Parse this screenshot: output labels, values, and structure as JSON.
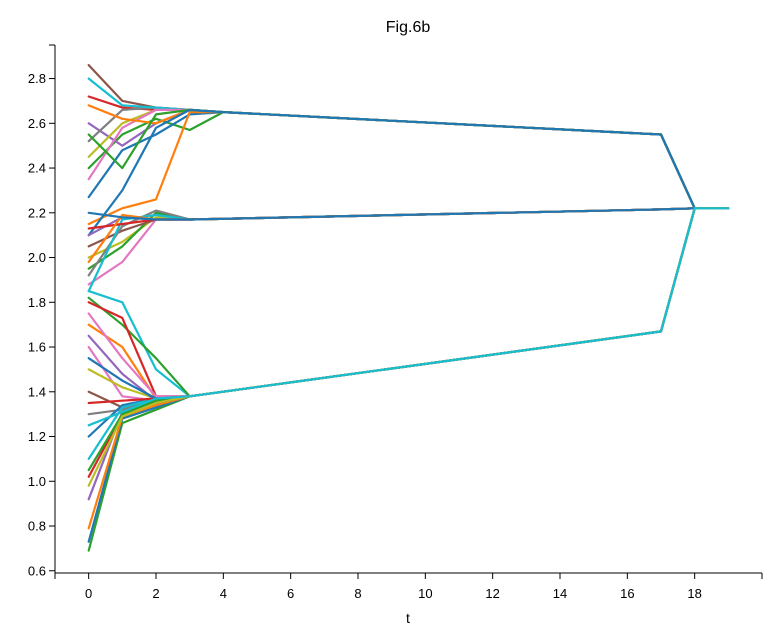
{
  "chart_data": {
    "type": "line",
    "title": "Fig.6b",
    "xlabel": "t",
    "ylabel": "",
    "xlim": [
      -1,
      20
    ],
    "ylim": [
      0.59,
      2.95
    ],
    "x_ticks": [
      0,
      2,
      4,
      6,
      8,
      10,
      12,
      14,
      16,
      18
    ],
    "y_ticks": [
      0.6,
      0.8,
      1.0,
      1.2,
      1.4,
      1.6,
      1.8,
      2.0,
      2.2,
      2.4,
      2.6,
      2.8
    ],
    "grid": false,
    "legend": "none",
    "palette": [
      "#1f77b4",
      "#ff7f0e",
      "#2ca02c",
      "#d62728",
      "#9467bd",
      "#8c564b",
      "#e377c2",
      "#7f7f7f",
      "#bcbd22",
      "#17becf"
    ],
    "series": [
      {
        "color": "#2ca02c",
        "x": [
          0,
          1,
          2,
          3,
          4,
          17,
          18,
          19
        ],
        "y": [
          2.4,
          2.55,
          2.62,
          2.57,
          2.65,
          2.55,
          2.22,
          2.22
        ]
      },
      {
        "color": "#1f77b4",
        "x": [
          0,
          1,
          2,
          3,
          4,
          17,
          18,
          19
        ],
        "y": [
          2.27,
          2.48,
          2.55,
          2.64,
          2.65,
          2.55,
          2.22,
          2.22
        ]
      },
      {
        "color": "#ff7f0e",
        "x": [
          0,
          1,
          2,
          3,
          4,
          17,
          18,
          19
        ],
        "y": [
          2.15,
          2.22,
          2.26,
          2.65,
          2.65,
          2.55,
          2.22,
          2.22
        ]
      },
      {
        "color": "#8c564b",
        "x": [
          0,
          1,
          2,
          3,
          4,
          17,
          18,
          19
        ],
        "y": [
          2.86,
          2.7,
          2.67,
          2.66,
          2.65,
          2.55,
          2.22,
          2.22
        ]
      },
      {
        "color": "#d62728",
        "x": [
          0,
          1,
          2,
          3,
          4,
          17,
          18,
          19
        ],
        "y": [
          2.72,
          2.67,
          2.66,
          2.66,
          2.65,
          2.55,
          2.22,
          2.22
        ]
      },
      {
        "color": "#9467bd",
        "x": [
          0,
          1,
          2,
          3,
          4,
          17,
          18,
          19
        ],
        "y": [
          2.6,
          2.5,
          2.6,
          2.66,
          2.65,
          2.55,
          2.22,
          2.22
        ]
      },
      {
        "color": "#7f7f7f",
        "x": [
          0,
          1,
          2,
          3,
          4,
          17,
          18,
          19
        ],
        "y": [
          2.52,
          2.66,
          2.67,
          2.66,
          2.65,
          2.55,
          2.22,
          2.22
        ]
      },
      {
        "color": "#bcbd22",
        "x": [
          0,
          1,
          2,
          3,
          4,
          17,
          18,
          19
        ],
        "y": [
          2.45,
          2.6,
          2.66,
          2.66,
          2.65,
          2.55,
          2.22,
          2.22
        ]
      },
      {
        "color": "#17becf",
        "x": [
          0,
          1,
          2,
          3,
          4,
          17,
          18,
          19
        ],
        "y": [
          2.8,
          2.68,
          2.67,
          2.66,
          2.65,
          2.55,
          2.22,
          2.22
        ]
      },
      {
        "color": "#e377c2",
        "x": [
          0,
          1,
          2,
          3,
          4,
          17,
          18,
          19
        ],
        "y": [
          2.35,
          2.58,
          2.66,
          2.66,
          2.65,
          2.55,
          2.22,
          2.22
        ]
      },
      {
        "color": "#ff7f0e",
        "x": [
          0,
          1,
          2,
          3,
          4,
          17,
          18,
          19
        ],
        "y": [
          2.68,
          2.62,
          2.6,
          2.66,
          2.65,
          2.55,
          2.22,
          2.22
        ]
      },
      {
        "color": "#2ca02c",
        "x": [
          0,
          1,
          2,
          3,
          4,
          17,
          18,
          19
        ],
        "y": [
          2.55,
          2.4,
          2.64,
          2.66,
          2.65,
          2.55,
          2.22,
          2.22
        ]
      },
      {
        "color": "#1f77b4",
        "x": [
          0,
          1,
          2,
          3,
          4,
          17,
          18,
          19
        ],
        "y": [
          2.1,
          2.3,
          2.58,
          2.66,
          2.65,
          2.55,
          2.22,
          2.22
        ]
      },
      {
        "color": "#9467bd",
        "x": [
          0,
          1,
          2,
          3,
          17,
          18,
          19
        ],
        "y": [
          2.1,
          2.18,
          2.17,
          2.17,
          2.215,
          2.22,
          2.22
        ]
      },
      {
        "color": "#e377c2",
        "x": [
          0,
          1,
          2,
          3,
          17,
          18,
          19
        ],
        "y": [
          1.88,
          1.98,
          2.17,
          2.17,
          2.215,
          2.22,
          2.22
        ]
      },
      {
        "color": "#bcbd22",
        "x": [
          0,
          1,
          2,
          3,
          17,
          18,
          19
        ],
        "y": [
          2.0,
          2.07,
          2.18,
          2.17,
          2.215,
          2.22,
          2.22
        ]
      },
      {
        "color": "#2ca02c",
        "x": [
          0,
          1,
          2,
          3,
          17,
          18,
          19
        ],
        "y": [
          1.95,
          2.05,
          2.2,
          2.17,
          2.215,
          2.22,
          2.22
        ]
      },
      {
        "color": "#8c564b",
        "x": [
          0,
          1,
          2,
          3,
          17,
          18,
          19
        ],
        "y": [
          2.05,
          2.12,
          2.17,
          2.17,
          2.215,
          2.22,
          2.22
        ]
      },
      {
        "color": "#7f7f7f",
        "x": [
          0,
          1,
          2,
          3,
          17,
          18,
          19
        ],
        "y": [
          1.92,
          2.14,
          2.21,
          2.17,
          2.215,
          2.22,
          2.22
        ]
      },
      {
        "color": "#17becf",
        "x": [
          0,
          1,
          2,
          3,
          17,
          18,
          19
        ],
        "y": [
          1.85,
          2.17,
          2.19,
          2.17,
          2.215,
          2.22,
          2.22
        ]
      },
      {
        "color": "#d62728",
        "x": [
          0,
          1,
          2,
          3,
          17,
          18,
          19
        ],
        "y": [
          2.13,
          2.15,
          2.17,
          2.17,
          2.215,
          2.22,
          2.22
        ]
      },
      {
        "color": "#ff7f0e",
        "x": [
          0,
          1,
          2,
          3,
          17,
          18,
          19
        ],
        "y": [
          1.98,
          2.19,
          2.17,
          2.17,
          2.215,
          2.22,
          2.22
        ]
      },
      {
        "color": "#1f77b4",
        "x": [
          0,
          1,
          2,
          3,
          17,
          18,
          19
        ],
        "y": [
          2.2,
          2.18,
          2.17,
          2.17,
          2.215,
          2.22,
          2.22
        ]
      },
      {
        "color": "#2ca02c",
        "x": [
          0,
          1,
          2,
          3,
          17,
          18,
          19
        ],
        "y": [
          0.69,
          1.26,
          1.32,
          1.38,
          1.67,
          2.22,
          2.22
        ]
      },
      {
        "color": "#1f77b4",
        "x": [
          0,
          1,
          2,
          3,
          17,
          18,
          19
        ],
        "y": [
          0.73,
          1.28,
          1.33,
          1.38,
          1.67,
          2.22,
          2.22
        ]
      },
      {
        "color": "#ff7f0e",
        "x": [
          0,
          1,
          2,
          3,
          17,
          18,
          19
        ],
        "y": [
          0.79,
          1.29,
          1.34,
          1.38,
          1.67,
          2.22,
          2.22
        ]
      },
      {
        "color": "#d62728",
        "x": [
          0,
          1,
          2,
          3,
          17,
          18,
          19
        ],
        "y": [
          1.02,
          1.3,
          1.35,
          1.38,
          1.67,
          2.22,
          2.22
        ]
      },
      {
        "color": "#9467bd",
        "x": [
          0,
          1,
          2,
          3,
          17,
          18,
          19
        ],
        "y": [
          0.92,
          1.31,
          1.35,
          1.38,
          1.67,
          2.22,
          2.22
        ]
      },
      {
        "color": "#17becf",
        "x": [
          0,
          1,
          2,
          3,
          17,
          18,
          19
        ],
        "y": [
          1.85,
          1.8,
          1.5,
          1.38,
          1.67,
          2.22,
          2.22
        ]
      },
      {
        "color": "#2ca02c",
        "x": [
          0,
          1,
          2,
          3,
          17,
          18,
          19
        ],
        "y": [
          1.82,
          1.7,
          1.55,
          1.38,
          1.67,
          2.22,
          2.22
        ]
      },
      {
        "color": "#d62728",
        "x": [
          0,
          1,
          2,
          3,
          17,
          18,
          19
        ],
        "y": [
          1.8,
          1.73,
          1.38,
          1.38,
          1.67,
          2.22,
          2.22
        ]
      },
      {
        "color": "#e377c2",
        "x": [
          0,
          1,
          2,
          3,
          17,
          18,
          19
        ],
        "y": [
          1.6,
          1.38,
          1.36,
          1.38,
          1.67,
          2.22,
          2.22
        ]
      },
      {
        "color": "#bcbd22",
        "x": [
          0,
          1,
          2,
          3,
          17,
          18,
          19
        ],
        "y": [
          1.5,
          1.42,
          1.37,
          1.38,
          1.67,
          2.22,
          2.22
        ]
      },
      {
        "color": "#8c564b",
        "x": [
          0,
          1,
          2,
          3,
          17,
          18,
          19
        ],
        "y": [
          1.4,
          1.33,
          1.35,
          1.38,
          1.67,
          2.22,
          2.22
        ]
      },
      {
        "color": "#7f7f7f",
        "x": [
          0,
          1,
          2,
          3,
          17,
          18,
          19
        ],
        "y": [
          1.3,
          1.32,
          1.36,
          1.38,
          1.67,
          2.22,
          2.22
        ]
      },
      {
        "color": "#1f77b4",
        "x": [
          0,
          1,
          2,
          3,
          17,
          18,
          19
        ],
        "y": [
          1.2,
          1.34,
          1.37,
          1.38,
          1.67,
          2.22,
          2.22
        ]
      },
      {
        "color": "#ff7f0e",
        "x": [
          0,
          1,
          2,
          3,
          17,
          18,
          19
        ],
        "y": [
          1.7,
          1.6,
          1.37,
          1.38,
          1.67,
          2.22,
          2.22
        ]
      },
      {
        "color": "#17becf",
        "x": [
          0,
          1,
          2,
          3,
          17,
          18,
          19
        ],
        "y": [
          1.1,
          1.33,
          1.37,
          1.38,
          1.67,
          2.22,
          2.22
        ]
      },
      {
        "color": "#9467bd",
        "x": [
          0,
          1,
          2,
          3,
          17,
          18,
          19
        ],
        "y": [
          1.65,
          1.48,
          1.36,
          1.38,
          1.67,
          2.22,
          2.22
        ]
      },
      {
        "color": "#d62728",
        "x": [
          0,
          1,
          2,
          3,
          17,
          18,
          19
        ],
        "y": [
          1.35,
          1.36,
          1.37,
          1.38,
          1.67,
          2.22,
          2.22
        ]
      },
      {
        "color": "#2ca02c",
        "x": [
          0,
          1,
          2,
          3,
          17,
          18,
          19
        ],
        "y": [
          1.05,
          1.3,
          1.36,
          1.38,
          1.67,
          2.22,
          2.22
        ]
      },
      {
        "color": "#e377c2",
        "x": [
          0,
          1,
          2,
          3,
          17,
          18,
          19
        ],
        "y": [
          1.75,
          1.55,
          1.38,
          1.38,
          1.67,
          2.22,
          2.22
        ]
      },
      {
        "color": "#1f77b4",
        "x": [
          0,
          1,
          2,
          3,
          17,
          18,
          19
        ],
        "y": [
          1.55,
          1.45,
          1.37,
          1.38,
          1.67,
          2.22,
          2.22
        ]
      },
      {
        "color": "#bcbd22",
        "x": [
          0,
          1,
          2,
          3,
          17,
          18,
          19
        ],
        "y": [
          0.98,
          1.29,
          1.35,
          1.38,
          1.67,
          2.22,
          2.22
        ]
      },
      {
        "color": "#17becf",
        "x": [
          0,
          1,
          2,
          3,
          17,
          18,
          19
        ],
        "y": [
          1.25,
          1.31,
          1.37,
          1.38,
          1.67,
          2.22,
          2.22
        ]
      }
    ]
  }
}
